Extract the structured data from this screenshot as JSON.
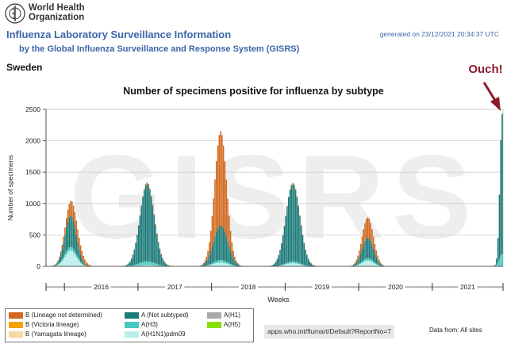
{
  "header": {
    "org_name": "World Health Organization",
    "app_title": "Influenza Laboratory Surveillance Information",
    "app_subtitle": "by the Global Influenza Surveillance and Response System (GISRS)",
    "generated": "generated on 23/12/2021 20:34:37 UTC",
    "logo_icon": "who-emblem-icon"
  },
  "country": "Sweden",
  "annotation": {
    "text": "Ouch!",
    "color": "#8b1a2b"
  },
  "watermark": "GISRS",
  "legend": {
    "items": [
      {
        "label": "B (Lineage not determined)",
        "color": "#d2691e"
      },
      {
        "label": "B (Victoria lineage)",
        "color": "#f5a100"
      },
      {
        "label": "B (Yamagata lineage)",
        "color": "#f7d9a0"
      },
      {
        "label": "A (Not subtyped)",
        "color": "#1a7a78"
      },
      {
        "label": "A(H3)",
        "color": "#48c9c0"
      },
      {
        "label": "A(H1N1)pdm09",
        "color": "#b8efec"
      },
      {
        "label": "A(H1)",
        "color": "#a9a9a9"
      },
      {
        "label": "A(H5)",
        "color": "#88e000"
      }
    ]
  },
  "footer": {
    "report_url": "apps.who.int/flumart/Default?ReportNo=7",
    "data_from": "Data from: All sites"
  },
  "chart_data": {
    "type": "bar",
    "stacked": true,
    "title": "Number of specimens positive for influenza by subtype",
    "xlabel": "Weeks",
    "ylabel": "Number of specimens",
    "ylim": [
      0,
      2500
    ],
    "yticks": [
      0,
      500,
      1000,
      1500,
      2000,
      2500
    ],
    "grid": true,
    "years": [
      "2016",
      "2017",
      "2018",
      "2019",
      "2020",
      "2021"
    ],
    "x_start": "2015-W40",
    "x_end": "2021-W50",
    "series": [
      {
        "name": "A(H1N1)pdm09",
        "color": "#b8efec",
        "peaks": [
          {
            "week": "2016-W05",
            "value": 250,
            "sigma": 4
          },
          {
            "week": "2017-W07",
            "value": 20,
            "sigma": 5
          },
          {
            "week": "2018-W07",
            "value": 60,
            "sigma": 5
          },
          {
            "week": "2019-W06",
            "value": 50,
            "sigma": 5
          },
          {
            "week": "2020-W07",
            "value": 90,
            "sigma": 4
          }
        ]
      },
      {
        "name": "A(H3)",
        "color": "#48c9c0",
        "peaks": [
          {
            "week": "2016-W05",
            "value": 60,
            "sigma": 5
          },
          {
            "week": "2017-W07",
            "value": 60,
            "sigma": 6
          },
          {
            "week": "2018-W07",
            "value": 40,
            "sigma": 5
          },
          {
            "week": "2019-W06",
            "value": 30,
            "sigma": 5
          },
          {
            "week": "2020-W07",
            "value": 40,
            "sigma": 4
          },
          {
            "week": "2021-W50",
            "value": 200,
            "sigma": 2
          }
        ]
      },
      {
        "name": "A (Not subtyped)",
        "color": "#1a7a78",
        "peaks": [
          {
            "week": "2016-W05",
            "value": 500,
            "sigma": 4
          },
          {
            "week": "2017-W07",
            "value": 1230,
            "sigma": 5
          },
          {
            "week": "2018-W07",
            "value": 550,
            "sigma": 5
          },
          {
            "week": "2019-W06",
            "value": 1230,
            "sigma": 5
          },
          {
            "week": "2020-W07",
            "value": 330,
            "sigma": 4
          },
          {
            "week": "2021-W50",
            "value": 2230,
            "sigma": 1.6
          }
        ]
      },
      {
        "name": "B (Lineage not determined)",
        "color": "#d2691e",
        "peaks": [
          {
            "week": "2016-W07",
            "value": 250,
            "sigma": 5
          },
          {
            "week": "2017-W10",
            "value": 30,
            "sigma": 6
          },
          {
            "week": "2018-W07",
            "value": 1500,
            "sigma": 4
          },
          {
            "week": "2019-W08",
            "value": 20,
            "sigma": 6
          },
          {
            "week": "2020-W07",
            "value": 320,
            "sigma": 4
          }
        ]
      }
    ]
  }
}
